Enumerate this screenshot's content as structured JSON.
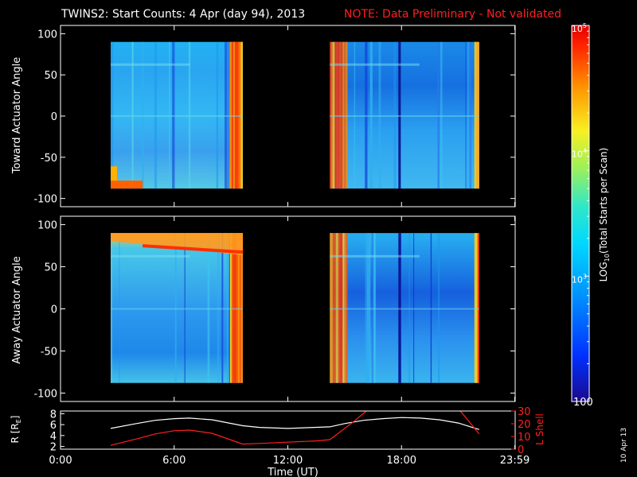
{
  "title": {
    "main": "TWINS2: Start Counts:  4 Apr (day  94), 2013",
    "note": "NOTE: Data Preliminary - Not validated",
    "note_color": "#ff2020"
  },
  "date_stamp": "10 Apr 13",
  "chart_data": [
    {
      "type": "heatmap",
      "name": "toward",
      "ylabel": "Toward Actuator Angle",
      "ylim": [
        -110,
        110
      ],
      "yticks": [
        100,
        50,
        0,
        -50,
        -100
      ],
      "xlim": [
        0,
        24
      ],
      "data_spans_hours": [
        [
          2.65,
          9.62
        ],
        [
          14.22,
          22.1
        ]
      ],
      "angle_range": [
        -88,
        90
      ]
    },
    {
      "type": "heatmap",
      "name": "away",
      "ylabel": "Away Actuator Angle",
      "ylim": [
        -110,
        110
      ],
      "yticks": [
        100,
        50,
        0,
        -50,
        -100
      ],
      "xlim": [
        0,
        24
      ],
      "data_spans_hours": [
        [
          2.65,
          9.62
        ],
        [
          14.22,
          22.1
        ]
      ],
      "angle_range": [
        -88,
        90
      ]
    },
    {
      "type": "line",
      "name": "orbit",
      "xlabel": "Time (UT)",
      "xlim": [
        0,
        24
      ],
      "xtick_labels": [
        "0:00",
        "6:00",
        "12:00",
        "18:00",
        "23:59"
      ],
      "xtick_values": [
        0,
        6,
        12,
        18,
        23.98
      ],
      "left_axis": {
        "label": "R [R",
        "label_sub": "E",
        "label_end": "]",
        "ylim": [
          1.5,
          8.5
        ],
        "yticks": [
          2,
          4,
          6,
          8
        ]
      },
      "right_axis": {
        "label": "L Shell",
        "ylim": [
          0,
          30
        ],
        "yticks": [
          0,
          10,
          20,
          30
        ],
        "color": "#ff2020"
      },
      "series": [
        {
          "axis": "left",
          "color": "#ffffff",
          "x": [
            2.65,
            4,
            5,
            6,
            6.8,
            8,
            9.62,
            10.5,
            12,
            14.22,
            15,
            16,
            17,
            18,
            19,
            20,
            21,
            22.1
          ],
          "y": [
            5.3,
            6.2,
            6.8,
            7.1,
            7.2,
            6.9,
            5.8,
            5.5,
            5.3,
            5.6,
            6.2,
            6.8,
            7.1,
            7.3,
            7.2,
            6.9,
            6.3,
            5.1
          ]
        },
        {
          "axis": "right",
          "color": "#ff2020",
          "x": [
            2.65,
            4,
            5,
            6,
            6.8,
            8,
            9.62,
            10.5,
            12,
            13.5,
            14.22,
            15.5,
            16.3
          ],
          "y": [
            3,
            8,
            12,
            14.5,
            15,
            12.5,
            4,
            4.5,
            5.5,
            6.5,
            7.5,
            22,
            32
          ]
        },
        {
          "axis": "right",
          "color": "#ff2020",
          "x": [
            21.0,
            22.1
          ],
          "y": [
            32,
            12
          ]
        }
      ]
    },
    {
      "type": "colorbar",
      "name": "colorbar",
      "label": "(Total Starts per Scan)",
      "label_prefix": "LOG",
      "label_sub": "10",
      "scale": "log",
      "range": [
        100,
        100000
      ],
      "tick_labels": [
        {
          "base": "10",
          "exp": "5",
          "value": 100000
        },
        {
          "base": "10",
          "exp": "4",
          "value": 10000
        },
        {
          "base": "10",
          "exp": "3",
          "value": 1000
        },
        {
          "base": "100",
          "exp": "",
          "value": 100
        }
      ]
    }
  ]
}
